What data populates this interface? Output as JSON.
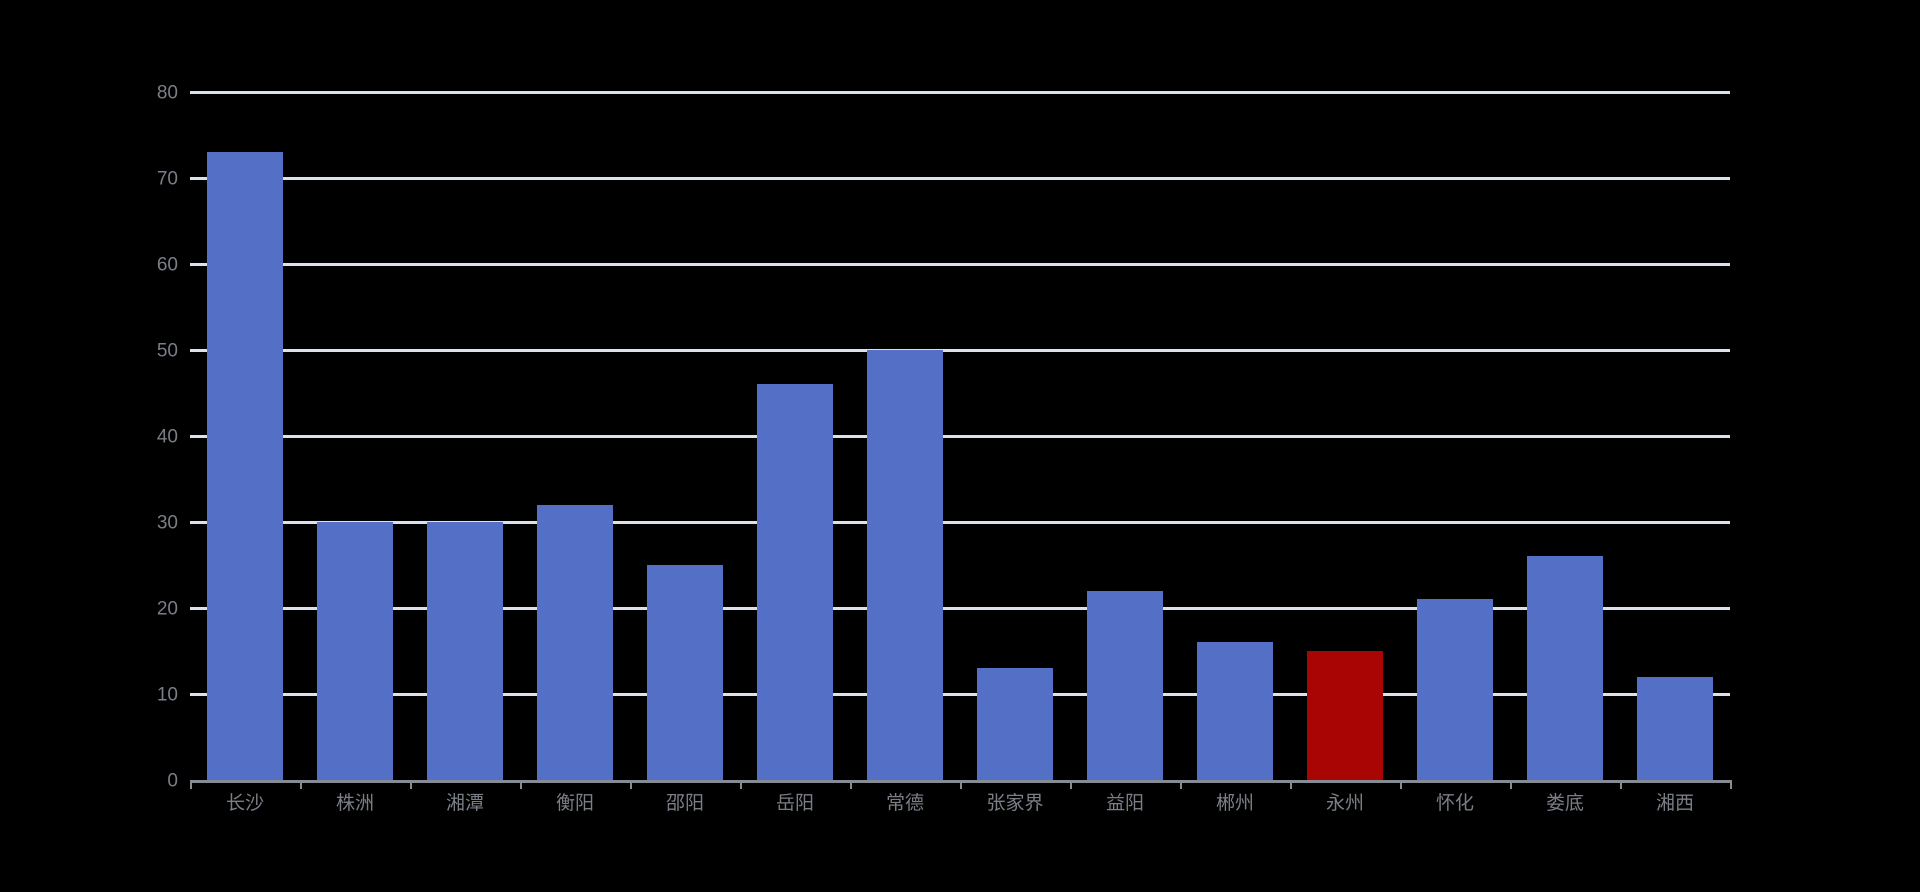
{
  "page": {
    "background_color": "#000000"
  },
  "chart_data": {
    "type": "bar",
    "title": "",
    "xlabel": "",
    "ylabel": "",
    "categories": [
      "长沙",
      "株洲",
      "湘潭",
      "衡阳",
      "邵阳",
      "岳阳",
      "常德",
      "张家界",
      "益阳",
      "郴州",
      "永州",
      "怀化",
      "娄底",
      "湘西"
    ],
    "values": [
      73,
      30,
      30,
      32,
      25,
      46,
      50,
      13,
      22,
      16,
      15,
      21,
      26,
      12
    ],
    "highlight_index": 10,
    "highlighted_category": "永州",
    "y_ticks": [
      "0",
      "10",
      "20",
      "30",
      "40",
      "50",
      "60",
      "70",
      "80"
    ],
    "ylim": [
      0,
      80
    ],
    "grid": true,
    "legend": false,
    "colors": {
      "bar": "#5470C6",
      "highlight_bar": "#AA0505",
      "gridline": "#DCE1EE",
      "axis": "#878B93",
      "label": "#7A7E87",
      "background": "#000000"
    }
  }
}
